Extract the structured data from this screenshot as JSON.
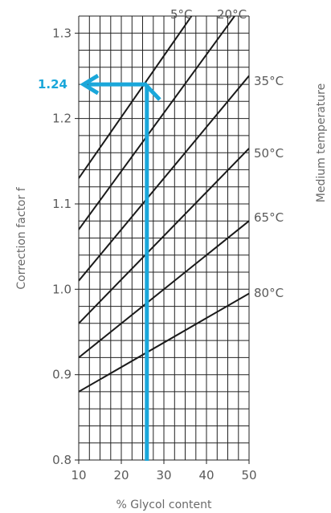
{
  "colors": {
    "highlight": "#1AA7DA",
    "line": "#1a1a1a",
    "grid": "#222222",
    "text": "#5a5a5a"
  },
  "chart_data": {
    "type": "line",
    "title": "",
    "xlabel": "% Glycol content",
    "ylabel": "Correction factor f",
    "right_label": "Medium temperature",
    "xlim": [
      10,
      50
    ],
    "ylim": [
      0.8,
      1.32
    ],
    "x_ticks": [
      "10",
      "20",
      "30",
      "40",
      "50"
    ],
    "y_ticks": [
      "0.8",
      "0.9",
      "1.0",
      "1.1",
      "1.2",
      "1.3"
    ],
    "grid": true,
    "series": [
      {
        "name": "5°C",
        "x": [
          10,
          36.5
        ],
        "y": [
          1.13,
          1.32
        ]
      },
      {
        "name": "20°C",
        "x": [
          10,
          46.6
        ],
        "y": [
          1.07,
          1.32
        ]
      },
      {
        "name": "35°C",
        "x": [
          10,
          50
        ],
        "y": [
          1.01,
          1.25
        ]
      },
      {
        "name": "50°C",
        "x": [
          10,
          50
        ],
        "y": [
          0.96,
          1.165
        ]
      },
      {
        "name": "65°C",
        "x": [
          10,
          50
        ],
        "y": [
          0.92,
          1.08
        ]
      },
      {
        "name": "80°C",
        "x": [
          10,
          50
        ],
        "y": [
          0.88,
          0.995
        ]
      }
    ],
    "annotation": {
      "x": 26,
      "y": 1.24,
      "label": "1.24"
    }
  }
}
